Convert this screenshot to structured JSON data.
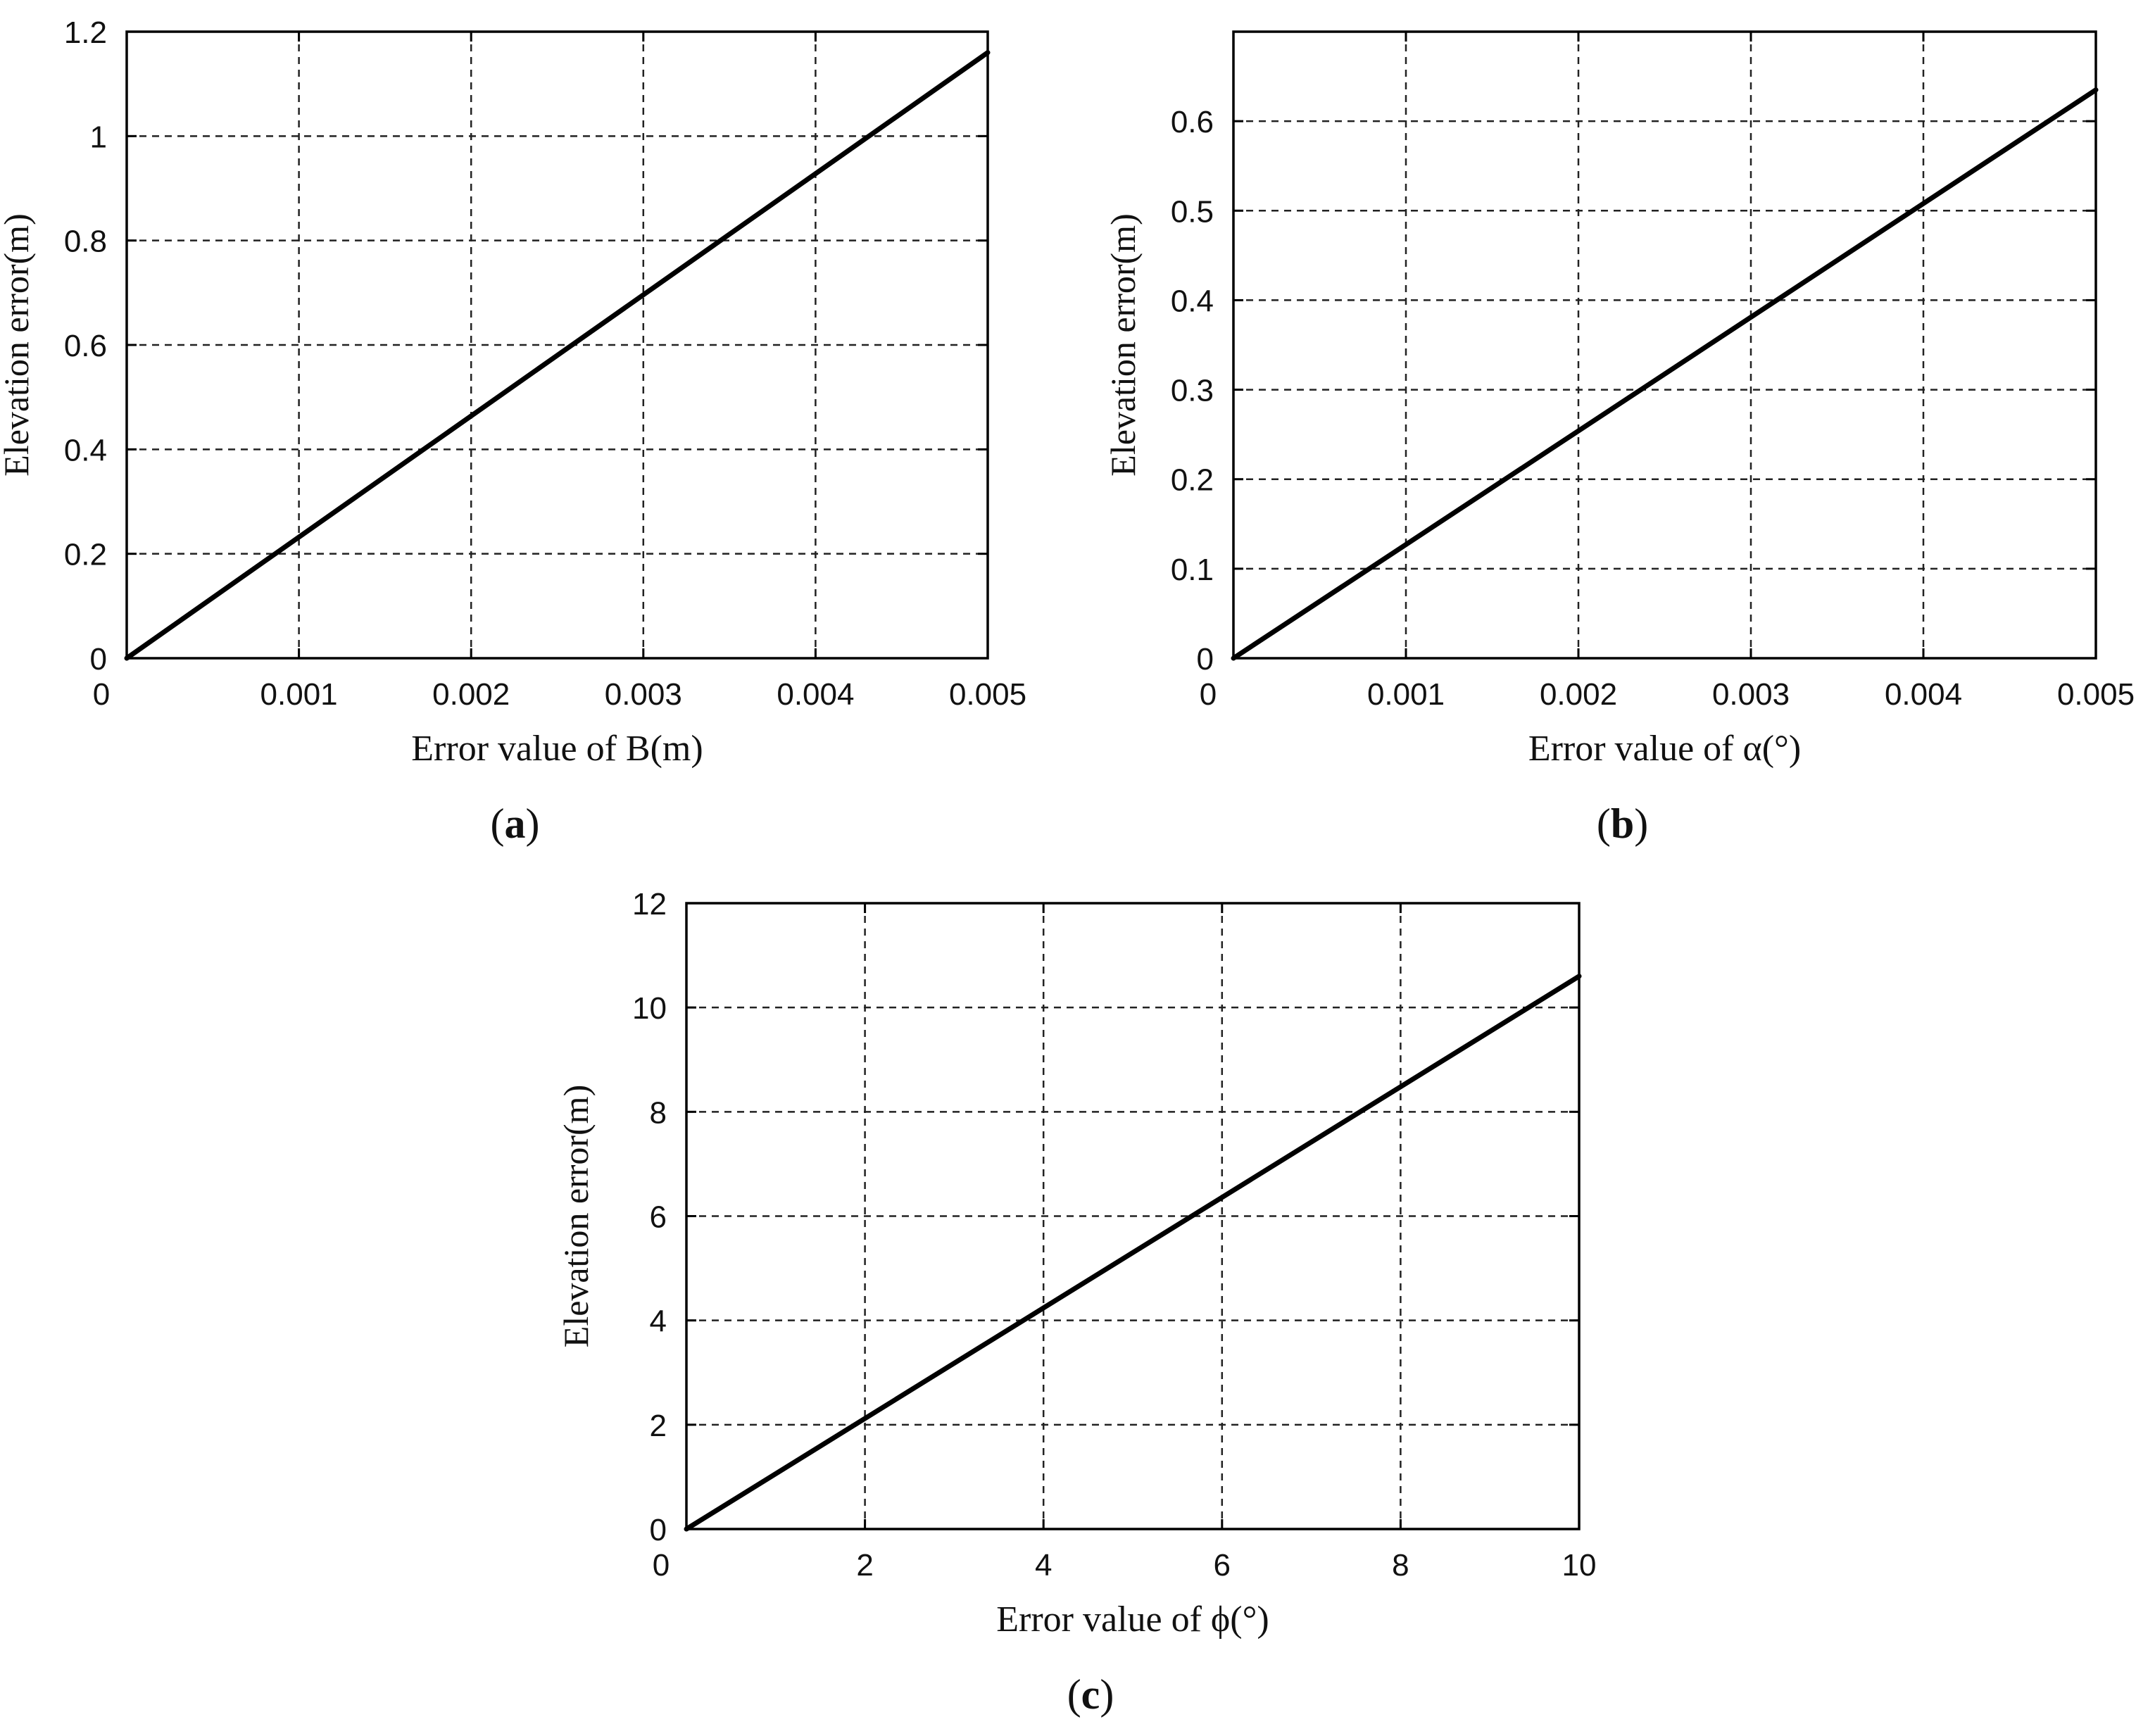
{
  "chart_data": [
    {
      "id": "a",
      "type": "line",
      "panel_label": "a",
      "xlabel": "Error value of  B(m)",
      "ylabel": "Elevation error(m)",
      "xlim": [
        0,
        0.005
      ],
      "ylim": [
        0,
        1.2
      ],
      "grid": true,
      "xticks": [
        0,
        0.001,
        0.002,
        0.003,
        0.004,
        0.005
      ],
      "xtick_labels": [
        "0",
        "0.001",
        "0.002",
        "0.003",
        "0.004",
        "0.005"
      ],
      "yticks": [
        0,
        0.2,
        0.4,
        0.6,
        0.8,
        1,
        1.2
      ],
      "ytick_labels": [
        "0",
        "0.2",
        "0.4",
        "0.6",
        "0.8",
        "1",
        "1.2"
      ],
      "series": [
        {
          "x": [
            0,
            0.005
          ],
          "y": [
            0,
            1.16
          ]
        }
      ]
    },
    {
      "id": "b",
      "type": "line",
      "panel_label": "b",
      "xlabel": "Error value of α(°)",
      "ylabel": "Elevation error(m)",
      "xlim": [
        0,
        0.005
      ],
      "ylim": [
        0,
        0.7
      ],
      "grid": true,
      "xticks": [
        0,
        0.001,
        0.002,
        0.003,
        0.004,
        0.005
      ],
      "xtick_labels": [
        "0",
        "0.001",
        "0.002",
        "0.003",
        "0.004",
        "0.005"
      ],
      "yticks": [
        0,
        0.1,
        0.2,
        0.3,
        0.4,
        0.5,
        0.6
      ],
      "ytick_labels": [
        "0",
        "0.1",
        "0.2",
        "0.3",
        "0.4",
        "0.5",
        "0.6"
      ],
      "series": [
        {
          "x": [
            0,
            0.005
          ],
          "y": [
            0,
            0.635
          ]
        }
      ]
    },
    {
      "id": "c",
      "type": "line",
      "panel_label": "c",
      "xlabel": "Error value of ϕ(°)",
      "ylabel": "Elevation error(m)",
      "xlim": [
        0,
        10
      ],
      "ylim": [
        0,
        12
      ],
      "grid": true,
      "xticks": [
        0,
        2,
        4,
        6,
        8,
        10
      ],
      "xtick_labels": [
        "0",
        "2",
        "4",
        "6",
        "8",
        "10"
      ],
      "yticks": [
        0,
        2,
        4,
        6,
        8,
        10,
        12
      ],
      "ytick_labels": [
        "0",
        "2",
        "4",
        "6",
        "8",
        "10",
        "12"
      ],
      "series": [
        {
          "x": [
            0,
            10
          ],
          "y": [
            0,
            10.6
          ]
        }
      ]
    }
  ]
}
